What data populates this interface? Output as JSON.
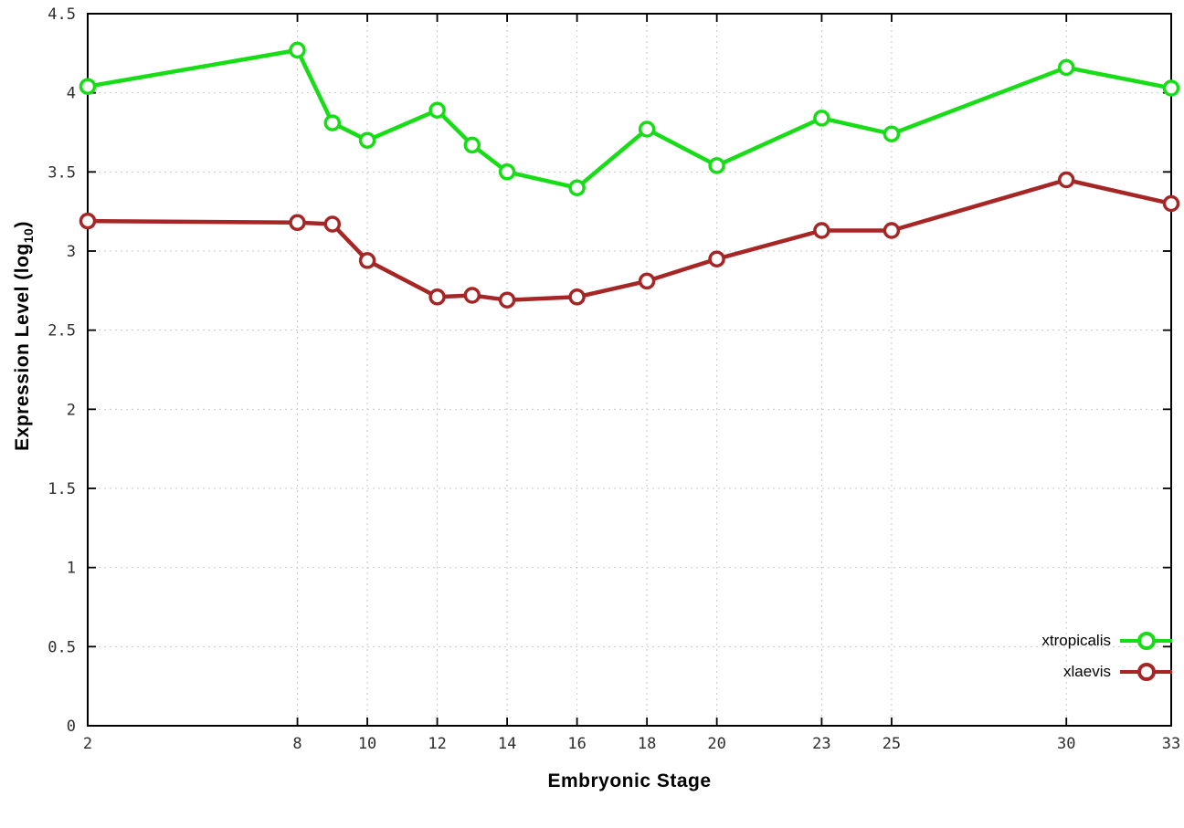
{
  "chart_data": {
    "type": "line",
    "title": "",
    "xlabel": "Embryonic Stage",
    "ylabel": "Expression Level (log10)",
    "ylabel_parts": {
      "prefix": "Expression Level (log",
      "sub": "10",
      "suffix": ")"
    },
    "xlim": [
      2,
      33
    ],
    "ylim": [
      0,
      4.5
    ],
    "grid": true,
    "legend_position": "bottom-right",
    "xticks": [
      2,
      8,
      10,
      12,
      14,
      16,
      18,
      20,
      23,
      25,
      30,
      33
    ],
    "yticks": [
      0,
      0.5,
      1,
      1.5,
      2,
      2.5,
      3,
      3.5,
      4,
      4.5
    ],
    "x": [
      2,
      8,
      9,
      10,
      12,
      13,
      14,
      16,
      18,
      20,
      23,
      25,
      30,
      33
    ],
    "series": [
      {
        "name": "xtropicalis",
        "color": "#17dd17",
        "marker": "open-circle",
        "values": [
          4.04,
          4.27,
          3.81,
          3.7,
          3.89,
          3.67,
          3.5,
          3.4,
          3.77,
          3.54,
          3.84,
          3.74,
          4.16,
          4.03
        ]
      },
      {
        "name": "xlaevis",
        "color": "#a62626",
        "marker": "open-circle",
        "values": [
          3.19,
          3.18,
          3.17,
          2.94,
          2.71,
          2.72,
          2.69,
          2.71,
          2.81,
          2.95,
          3.13,
          3.13,
          3.45,
          3.3
        ]
      }
    ]
  }
}
